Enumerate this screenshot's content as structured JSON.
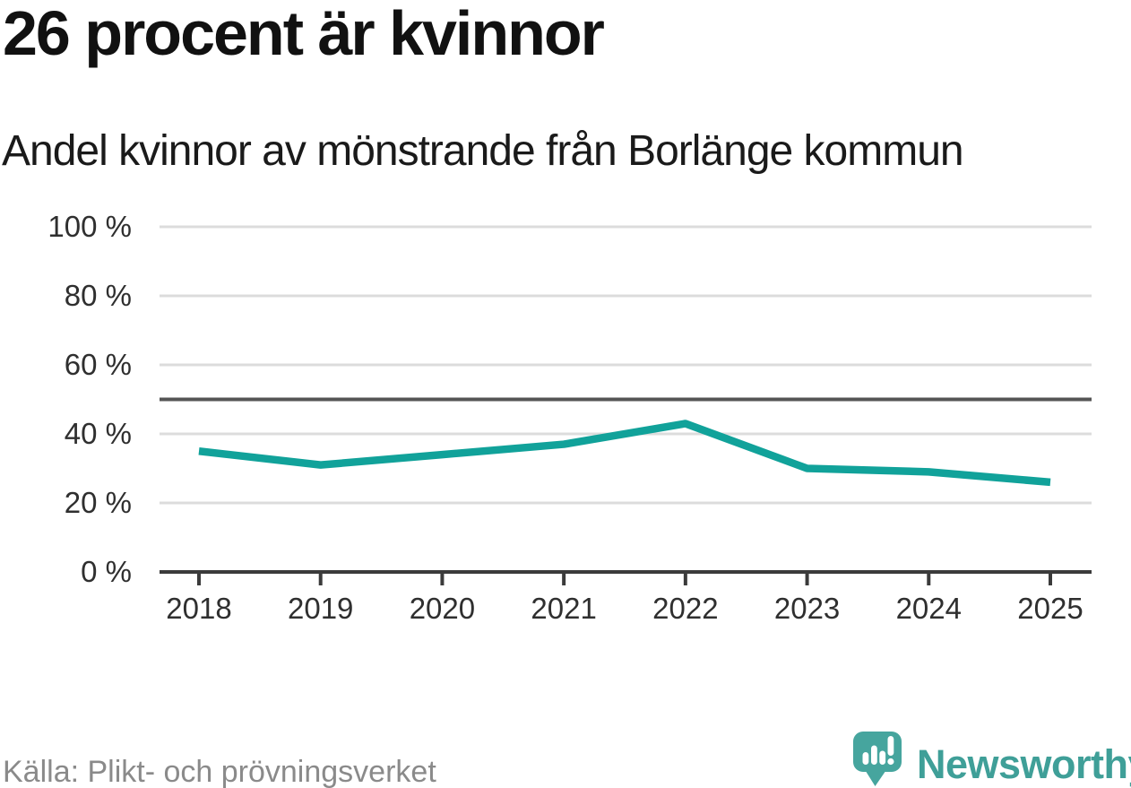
{
  "header": {
    "title": "26 procent är kvinnor",
    "subtitle": "Andel kvinnor av mönstrande från Borlänge kommun"
  },
  "chart_data": {
    "type": "line",
    "title": "26 procent är kvinnor",
    "subtitle": "Andel kvinnor av mönstrande från Borlänge kommun",
    "x": [
      "2018",
      "2019",
      "2020",
      "2021",
      "2022",
      "2023",
      "2024",
      "2025"
    ],
    "series": [
      {
        "name": "Andel kvinnor av mönstrande från Borlänge kommun",
        "values": [
          35,
          31,
          34,
          37,
          43,
          30,
          29,
          26
        ]
      }
    ],
    "ylabel": "",
    "xlabel": "",
    "ylim": [
      0,
      100
    ],
    "yticks": [
      0,
      20,
      40,
      60,
      80,
      100
    ],
    "ytick_suffix": " %",
    "reference_line": 50,
    "grid": true,
    "legend_position": "none"
  },
  "footer": {
    "source": "Källa: Plikt- och prövningsverket",
    "brand": "Newsworthy"
  },
  "colors": {
    "line": "#11a29a",
    "grid": "#dcdcdc",
    "axis": "#3b3b3b",
    "reference": "#555555",
    "tick_text": "#2f2f2f",
    "title_text": "#111111",
    "muted_text": "#8a8a8a",
    "brand_teal": "#3f9f98",
    "brand_icon": "#46a59e"
  }
}
